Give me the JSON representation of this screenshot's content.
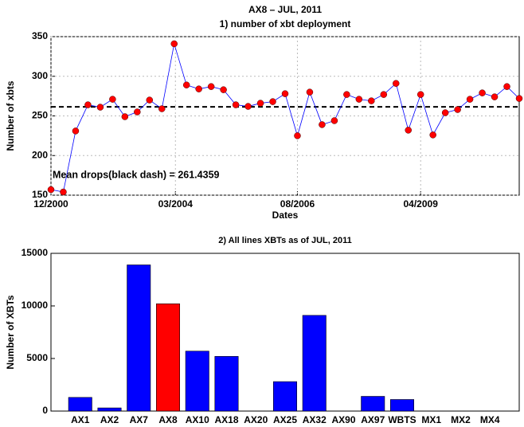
{
  "chart_data": [
    {
      "type": "line",
      "title": "AX8 – JUL, 2011",
      "subtitle": "1) number of xbt deployment",
      "xlabel": "Dates",
      "ylabel": "Number of xbts",
      "x": [
        0,
        1,
        2,
        3,
        4,
        5,
        6,
        7,
        8,
        9,
        10,
        11,
        12,
        13,
        14,
        15,
        16,
        17,
        18,
        19,
        20,
        21,
        22,
        23,
        24,
        25,
        26,
        27,
        28,
        29,
        30,
        31,
        32,
        33,
        34,
        35,
        36,
        37,
        38
      ],
      "series": [
        {
          "name": "AX8",
          "color": "#0000ff",
          "marker_color": "#ff0000",
          "values": [
            157,
            154,
            231,
            264,
            261,
            271,
            249,
            255,
            270,
            259,
            341,
            289,
            284,
            287,
            283,
            264,
            262,
            266,
            268,
            278,
            225,
            280,
            239,
            244,
            277,
            271,
            269,
            277,
            291,
            232,
            277,
            226,
            254,
            258,
            271,
            279,
            274,
            287,
            272
          ]
        }
      ],
      "mean": 261.4359,
      "annotation": "Mean drops(black dash) = 261.4359",
      "xlim": [
        0,
        38
      ],
      "xticks": [
        {
          "value": 0,
          "label": "12/2000"
        },
        {
          "value": 10.1,
          "label": "03/2004"
        },
        {
          "value": 20,
          "label": "08/2006"
        },
        {
          "value": 30,
          "label": "04/2009"
        }
      ],
      "ylim": [
        150,
        350
      ],
      "yticks": [
        150,
        200,
        250,
        300,
        350
      ],
      "grid": true
    },
    {
      "type": "bar",
      "title": "2) All lines XBTs as of JUL, 2011",
      "ylabel": "Number of XBTs",
      "categories": [
        "AX1",
        "AX2",
        "AX7",
        "AX8",
        "AX10",
        "AX18",
        "AX20",
        "AX25",
        "AX32",
        "AX90",
        "AX97",
        "WBTS",
        "MX1",
        "MX2",
        "MX4"
      ],
      "values": [
        1300,
        300,
        13900,
        10200,
        5700,
        5200,
        0,
        2800,
        9100,
        0,
        1400,
        1100,
        0,
        0,
        0
      ],
      "colors": [
        "#0000ff",
        "#0000ff",
        "#0000ff",
        "#ff0000",
        "#0000ff",
        "#0000ff",
        "#0000ff",
        "#0000ff",
        "#0000ff",
        "#0000ff",
        "#0000ff",
        "#0000ff",
        "#0000ff",
        "#0000ff",
        "#0000ff"
      ],
      "ylim": [
        0,
        15000
      ],
      "yticks": [
        0,
        5000,
        10000,
        15000
      ],
      "grid": false
    }
  ]
}
